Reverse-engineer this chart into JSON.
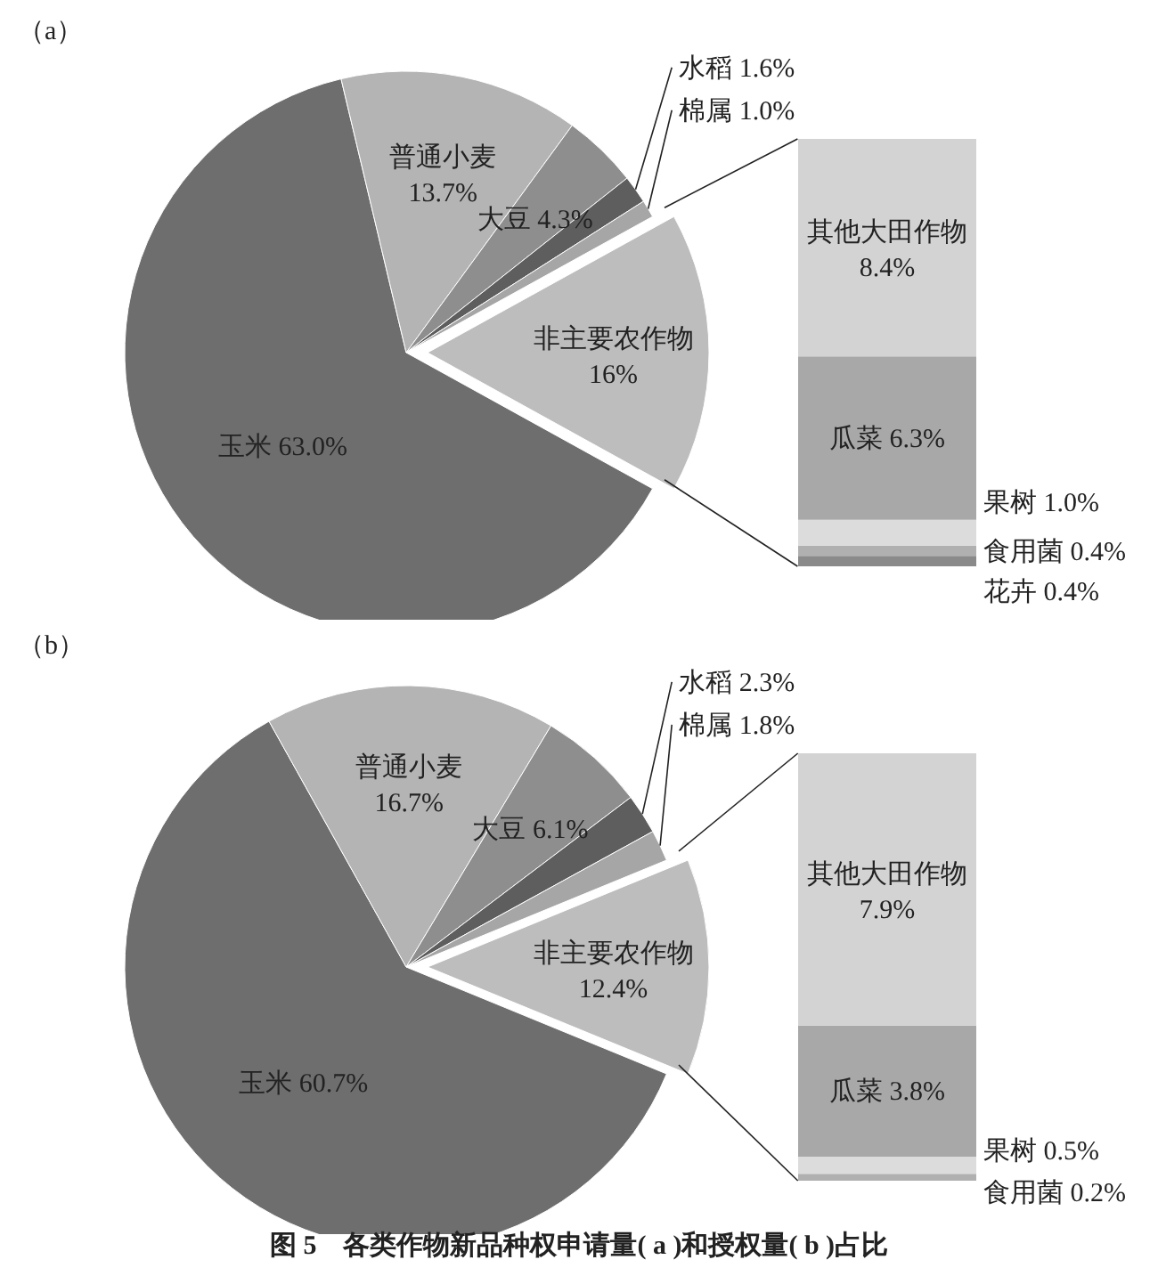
{
  "chart_data": [
    {
      "type": "pie",
      "title": "（a）",
      "categories": [
        "玉米",
        "普通小麦",
        "大豆",
        "水稻",
        "棉属",
        "非主要农作物"
      ],
      "values": [
        63.0,
        13.7,
        4.3,
        1.6,
        1.0,
        16
      ],
      "value_labels": [
        "63.0%",
        "13.7%",
        "4.3%",
        "1.6%",
        "1.0%",
        "16%"
      ],
      "colors": [
        "#6e6e6e",
        "#b4b4b4",
        "#8e8e8e",
        "#5e5e5e",
        "#a6a6a6",
        "#bdbdbd"
      ]
    },
    {
      "type": "bar",
      "stacked": true,
      "categories": [
        null
      ],
      "tick_labels": false,
      "series": [
        {
          "name": "花卉",
          "color": "#8a8a8a",
          "values": [
            0.4
          ],
          "value_labels": [
            "0.4%"
          ]
        },
        {
          "name": "食用菌",
          "color": "#b0b0b0",
          "values": [
            0.4
          ],
          "value_labels": [
            "0.4%"
          ]
        },
        {
          "name": "果树",
          "color": "#dcdcdc",
          "values": [
            1.0
          ],
          "value_labels": [
            "1.0%"
          ]
        },
        {
          "name": "瓜菜",
          "color": "#a8a8a8",
          "values": [
            6.3
          ],
          "value_labels": [
            "6.3%"
          ]
        },
        {
          "name": "其他大田作物",
          "color": "#d3d3d3",
          "values": [
            8.4
          ],
          "value_labels": [
            "8.4%"
          ]
        }
      ]
    },
    {
      "type": "pie",
      "title": "（b）",
      "categories": [
        "玉米",
        "普通小麦",
        "大豆",
        "水稻",
        "棉属",
        "非主要农作物"
      ],
      "values": [
        60.7,
        16.7,
        6.1,
        2.3,
        1.8,
        12.4
      ],
      "value_labels": [
        "60.7%",
        "16.7%",
        "6.1%",
        "2.3%",
        "1.8%",
        "12.4%"
      ],
      "colors": [
        "#6e6e6e",
        "#b4b4b4",
        "#8e8e8e",
        "#5e5e5e",
        "#a6a6a6",
        "#bdbdbd"
      ]
    },
    {
      "type": "bar",
      "stacked": true,
      "categories": [
        null
      ],
      "tick_labels": false,
      "series": [
        {
          "name": "食用菌",
          "color": "#b0b0b0",
          "values": [
            0.2
          ],
          "value_labels": [
            "0.2%"
          ]
        },
        {
          "name": "果树",
          "color": "#dcdcdc",
          "values": [
            0.5
          ],
          "value_labels": [
            "0.5%"
          ]
        },
        {
          "name": "瓜菜",
          "color": "#a8a8a8",
          "values": [
            3.8
          ],
          "value_labels": [
            "3.8%"
          ]
        },
        {
          "name": "其他大田作物",
          "color": "#d3d3d3",
          "values": [
            7.9
          ],
          "value_labels": [
            "7.9%"
          ]
        }
      ],
      "annotations": [
        "图 5　各类作物新品种权申请量( a )和授权量( b )占比"
      ]
    }
  ]
}
